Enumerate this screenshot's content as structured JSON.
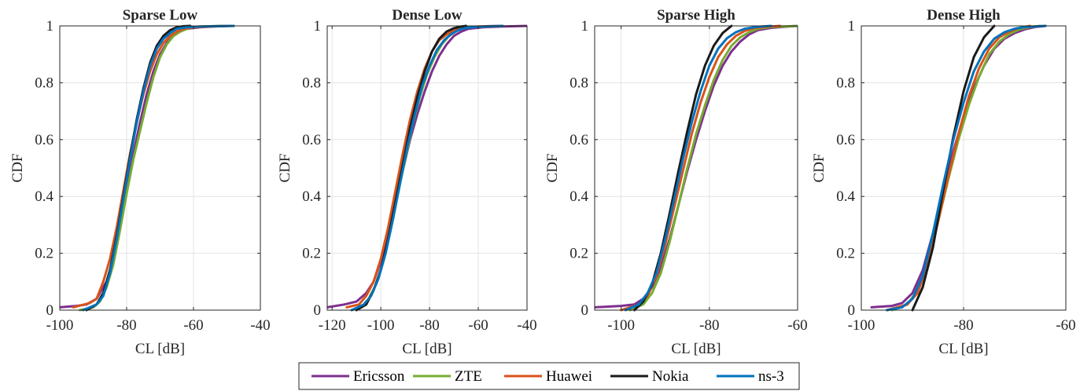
{
  "legend": {
    "entries": [
      {
        "name": "Ericsson",
        "color": "#7E2F8E"
      },
      {
        "name": "ZTE",
        "color": "#77AC30"
      },
      {
        "name": "Huawei",
        "color": "#D95319"
      },
      {
        "name": "Nokia",
        "color": "#1A1A1A"
      },
      {
        "name": "ns-3",
        "color": "#0072BD"
      }
    ],
    "placement": "bottom-center"
  },
  "chart_data": [
    {
      "type": "line",
      "title": "Sparse Low",
      "xlabel": "CL [dB]",
      "ylabel": "CDF",
      "xlim": [
        -100,
        -40
      ],
      "ylim": [
        0,
        1
      ],
      "xticks": [
        -100,
        -80,
        -60,
        -40
      ],
      "xtick_labels": [
        "-100",
        "-80",
        "-60",
        "-40"
      ],
      "yticks": [
        0,
        0.2,
        0.4,
        0.6,
        0.8,
        1
      ],
      "ytick_labels": [
        "0",
        "0.2",
        "0.4",
        "0.6",
        "0.8",
        "1"
      ],
      "grid": true,
      "series": [
        {
          "name": "Ericsson",
          "x": [
            -100,
            -95,
            -92,
            -89,
            -86,
            -84,
            -82,
            -80,
            -78,
            -76,
            -74,
            -72,
            -70,
            -68,
            -66,
            -64,
            -62,
            -58,
            -54,
            -50,
            -48
          ],
          "y": [
            0.01,
            0.015,
            0.02,
            0.04,
            0.1,
            0.18,
            0.3,
            0.43,
            0.55,
            0.66,
            0.76,
            0.84,
            0.9,
            0.94,
            0.965,
            0.98,
            0.99,
            0.995,
            0.998,
            1.0,
            1.0
          ]
        },
        {
          "name": "ZTE",
          "x": [
            -94,
            -90,
            -88,
            -86,
            -84,
            -82,
            -80,
            -78,
            -76,
            -74,
            -72,
            -70,
            -68,
            -66,
            -64,
            -62,
            -60,
            -56,
            -52,
            -48
          ],
          "y": [
            0.0,
            0.01,
            0.03,
            0.08,
            0.16,
            0.28,
            0.41,
            0.53,
            0.63,
            0.73,
            0.82,
            0.89,
            0.935,
            0.965,
            0.98,
            0.99,
            0.995,
            0.998,
            1.0,
            1.0
          ]
        },
        {
          "name": "Huawei",
          "x": [
            -96,
            -91,
            -89,
            -87,
            -85,
            -83,
            -81,
            -79,
            -77,
            -75,
            -73,
            -71,
            -69,
            -67,
            -65,
            -63,
            -60,
            -55,
            -48
          ],
          "y": [
            0.01,
            0.025,
            0.04,
            0.1,
            0.18,
            0.29,
            0.42,
            0.55,
            0.66,
            0.76,
            0.84,
            0.9,
            0.94,
            0.965,
            0.98,
            0.99,
            0.995,
            0.998,
            1.0
          ]
        },
        {
          "name": "Nokia",
          "x": [
            -92,
            -89,
            -87,
            -85,
            -83,
            -81,
            -79,
            -77,
            -75,
            -73,
            -71,
            -69,
            -67,
            -65,
            -63,
            -61
          ],
          "y": [
            0.0,
            0.02,
            0.06,
            0.14,
            0.26,
            0.4,
            0.54,
            0.67,
            0.78,
            0.87,
            0.93,
            0.965,
            0.985,
            0.995,
            0.999,
            1.0
          ]
        },
        {
          "name": "ns-3",
          "x": [
            -93,
            -89,
            -87,
            -85,
            -83,
            -81,
            -79,
            -77,
            -75,
            -73,
            -71,
            -69,
            -67,
            -65,
            -62,
            -58,
            -54,
            -48
          ],
          "y": [
            0.0,
            0.02,
            0.05,
            0.13,
            0.25,
            0.39,
            0.53,
            0.66,
            0.77,
            0.86,
            0.92,
            0.955,
            0.975,
            0.99,
            0.995,
            0.998,
            0.999,
            1.0
          ]
        }
      ]
    },
    {
      "type": "line",
      "title": "Dense Low",
      "xlabel": "CL [dB]",
      "ylabel": "CDF",
      "xlim": [
        -122,
        -40
      ],
      "ylim": [
        0,
        1
      ],
      "xticks": [
        -120,
        -100,
        -80,
        -60,
        -40
      ],
      "xtick_labels": [
        "-120",
        "-100",
        "-80",
        "-60",
        "-40"
      ],
      "yticks": [
        0,
        0.2,
        0.4,
        0.6,
        0.8,
        1
      ],
      "ytick_labels": [
        "0",
        "0.2",
        "0.4",
        "0.6",
        "0.8",
        "1"
      ],
      "grid": true,
      "series": [
        {
          "name": "Ericsson",
          "x": [
            -122,
            -115,
            -110,
            -106,
            -103,
            -100,
            -97,
            -94,
            -91,
            -88,
            -85,
            -82,
            -79,
            -76,
            -73,
            -70,
            -67,
            -64,
            -58,
            -50,
            -40
          ],
          "y": [
            0.01,
            0.02,
            0.03,
            0.06,
            0.1,
            0.17,
            0.27,
            0.38,
            0.49,
            0.6,
            0.69,
            0.77,
            0.84,
            0.895,
            0.935,
            0.965,
            0.98,
            0.99,
            0.995,
            0.998,
            1.0
          ]
        },
        {
          "name": "ZTE",
          "x": [
            -112,
            -108,
            -105,
            -102,
            -99,
            -96,
            -93,
            -90,
            -87,
            -84,
            -81,
            -78,
            -75,
            -72,
            -69,
            -66,
            -62,
            -56,
            -50
          ],
          "y": [
            0.0,
            0.01,
            0.04,
            0.09,
            0.17,
            0.28,
            0.41,
            0.53,
            0.65,
            0.75,
            0.83,
            0.89,
            0.935,
            0.965,
            0.982,
            0.992,
            0.996,
            0.998,
            1.0
          ]
        },
        {
          "name": "Huawei",
          "x": [
            -114,
            -109,
            -106,
            -103,
            -100,
            -97,
            -94,
            -91,
            -88,
            -85,
            -82,
            -79,
            -76,
            -73,
            -70,
            -67,
            -63,
            -56,
            -50
          ],
          "y": [
            0.01,
            0.02,
            0.05,
            0.1,
            0.18,
            0.29,
            0.42,
            0.55,
            0.67,
            0.77,
            0.85,
            0.91,
            0.95,
            0.97,
            0.985,
            0.993,
            0.997,
            0.999,
            1.0
          ]
        },
        {
          "name": "Nokia",
          "x": [
            -110,
            -106,
            -103,
            -100,
            -97,
            -94,
            -91,
            -88,
            -85,
            -82,
            -79,
            -76,
            -73,
            -70,
            -67,
            -65
          ],
          "y": [
            0.0,
            0.02,
            0.07,
            0.14,
            0.25,
            0.38,
            0.51,
            0.64,
            0.75,
            0.84,
            0.91,
            0.955,
            0.98,
            0.992,
            0.998,
            1.0
          ]
        },
        {
          "name": "ns-3",
          "x": [
            -112,
            -107,
            -104,
            -101,
            -98,
            -95,
            -92,
            -89,
            -86,
            -83,
            -80,
            -77,
            -74,
            -71,
            -68,
            -65,
            -60,
            -55,
            -50
          ],
          "y": [
            0.0,
            0.02,
            0.05,
            0.11,
            0.2,
            0.32,
            0.45,
            0.58,
            0.69,
            0.79,
            0.86,
            0.915,
            0.95,
            0.972,
            0.986,
            0.993,
            0.997,
            0.999,
            1.0
          ]
        }
      ]
    },
    {
      "type": "line",
      "title": "Sparse High",
      "xlabel": "CL [dB]",
      "ylabel": "CDF",
      "xlim": [
        -106,
        -60
      ],
      "ylim": [
        0,
        1
      ],
      "xticks": [
        -100,
        -80,
        -60
      ],
      "xtick_labels": [
        "-100",
        "-80",
        "-60"
      ],
      "yticks": [
        0,
        0.2,
        0.4,
        0.6,
        0.8,
        1
      ],
      "ytick_labels": [
        "0",
        "0.2",
        "0.4",
        "0.6",
        "0.8",
        "1"
      ],
      "grid": true,
      "series": [
        {
          "name": "Ericsson",
          "x": [
            -106,
            -100,
            -97,
            -95,
            -93,
            -91,
            -89,
            -87,
            -85,
            -83,
            -81,
            -79,
            -77,
            -75,
            -73,
            -71,
            -69,
            -66,
            -62,
            -60
          ],
          "y": [
            0.01,
            0.015,
            0.02,
            0.04,
            0.08,
            0.15,
            0.25,
            0.37,
            0.49,
            0.6,
            0.7,
            0.79,
            0.86,
            0.91,
            0.945,
            0.97,
            0.985,
            0.993,
            0.998,
            1.0
          ]
        },
        {
          "name": "ZTE",
          "x": [
            -98,
            -95,
            -93,
            -91,
            -89,
            -87,
            -85,
            -83,
            -81,
            -79,
            -77,
            -75,
            -73,
            -71,
            -69,
            -66,
            -63,
            -60
          ],
          "y": [
            0.0,
            0.02,
            0.06,
            0.13,
            0.24,
            0.37,
            0.5,
            0.62,
            0.72,
            0.81,
            0.88,
            0.93,
            0.96,
            0.978,
            0.99,
            0.996,
            0.998,
            1.0
          ]
        },
        {
          "name": "Huawei",
          "x": [
            -100,
            -96,
            -94,
            -92,
            -90,
            -88,
            -86,
            -84,
            -82,
            -80,
            -78,
            -76,
            -74,
            -72,
            -70,
            -67,
            -64
          ],
          "y": [
            0.0,
            0.02,
            0.05,
            0.12,
            0.23,
            0.36,
            0.49,
            0.62,
            0.73,
            0.82,
            0.89,
            0.935,
            0.965,
            0.982,
            0.992,
            0.997,
            1.0
          ]
        },
        {
          "name": "Nokia",
          "x": [
            -97,
            -95,
            -93,
            -91,
            -89,
            -87,
            -85,
            -83,
            -81,
            -79,
            -77,
            -75
          ],
          "y": [
            0.0,
            0.03,
            0.09,
            0.2,
            0.34,
            0.49,
            0.63,
            0.76,
            0.86,
            0.93,
            0.975,
            1.0
          ]
        },
        {
          "name": "ns-3",
          "x": [
            -99,
            -96,
            -94,
            -92,
            -90,
            -88,
            -86,
            -84,
            -82,
            -80,
            -78,
            -76,
            -74,
            -72,
            -69,
            -66
          ],
          "y": [
            0.0,
            0.02,
            0.06,
            0.13,
            0.25,
            0.39,
            0.53,
            0.66,
            0.77,
            0.86,
            0.92,
            0.957,
            0.978,
            0.99,
            0.997,
            1.0
          ]
        }
      ]
    },
    {
      "type": "line",
      "title": "Dense High",
      "xlabel": "CL [dB]",
      "ylabel": "CDF",
      "xlim": [
        -100,
        -60
      ],
      "ylim": [
        0,
        1
      ],
      "xticks": [
        -100,
        -80,
        -60
      ],
      "xtick_labels": [
        "-100",
        "-80",
        "-60"
      ],
      "yticks": [
        0,
        0.2,
        0.4,
        0.6,
        0.8,
        1
      ],
      "ytick_labels": [
        "0",
        "0.2",
        "0.4",
        "0.6",
        "0.8",
        "1"
      ],
      "grid": true,
      "series": [
        {
          "name": "Ericsson",
          "x": [
            -98,
            -94,
            -92,
            -90,
            -88,
            -86,
            -84,
            -82,
            -80,
            -78,
            -76,
            -74,
            -72,
            -70,
            -68,
            -66,
            -64
          ],
          "y": [
            0.01,
            0.015,
            0.025,
            0.06,
            0.14,
            0.27,
            0.42,
            0.56,
            0.68,
            0.78,
            0.86,
            0.92,
            0.955,
            0.975,
            0.988,
            0.996,
            1.0
          ]
        },
        {
          "name": "ZTE",
          "x": [
            -94,
            -91,
            -89,
            -87,
            -85,
            -83,
            -81,
            -79,
            -77,
            -75,
            -73,
            -71,
            -69,
            -67,
            -65
          ],
          "y": [
            0.0,
            0.02,
            0.07,
            0.17,
            0.31,
            0.46,
            0.6,
            0.72,
            0.82,
            0.9,
            0.945,
            0.972,
            0.988,
            0.996,
            1.0
          ]
        },
        {
          "name": "Huawei",
          "x": [
            -95,
            -91,
            -89,
            -87,
            -85,
            -83,
            -81,
            -79,
            -77,
            -75,
            -73,
            -71,
            -69,
            -67
          ],
          "y": [
            0.0,
            0.02,
            0.06,
            0.16,
            0.31,
            0.47,
            0.62,
            0.75,
            0.85,
            0.92,
            0.96,
            0.98,
            0.993,
            1.0
          ]
        },
        {
          "name": "Nokia",
          "x": [
            -90,
            -88,
            -86,
            -84,
            -82,
            -80,
            -78,
            -76,
            -74
          ],
          "y": [
            0.0,
            0.08,
            0.22,
            0.42,
            0.61,
            0.77,
            0.89,
            0.96,
            1.0
          ]
        },
        {
          "name": "ns-3",
          "x": [
            -95,
            -92,
            -90,
            -88,
            -86,
            -84,
            -82,
            -80,
            -78,
            -76,
            -74,
            -72,
            -70,
            -68,
            -64
          ],
          "y": [
            0.0,
            0.01,
            0.04,
            0.12,
            0.27,
            0.44,
            0.6,
            0.73,
            0.84,
            0.91,
            0.955,
            0.978,
            0.99,
            0.996,
            1.0
          ]
        }
      ]
    }
  ]
}
